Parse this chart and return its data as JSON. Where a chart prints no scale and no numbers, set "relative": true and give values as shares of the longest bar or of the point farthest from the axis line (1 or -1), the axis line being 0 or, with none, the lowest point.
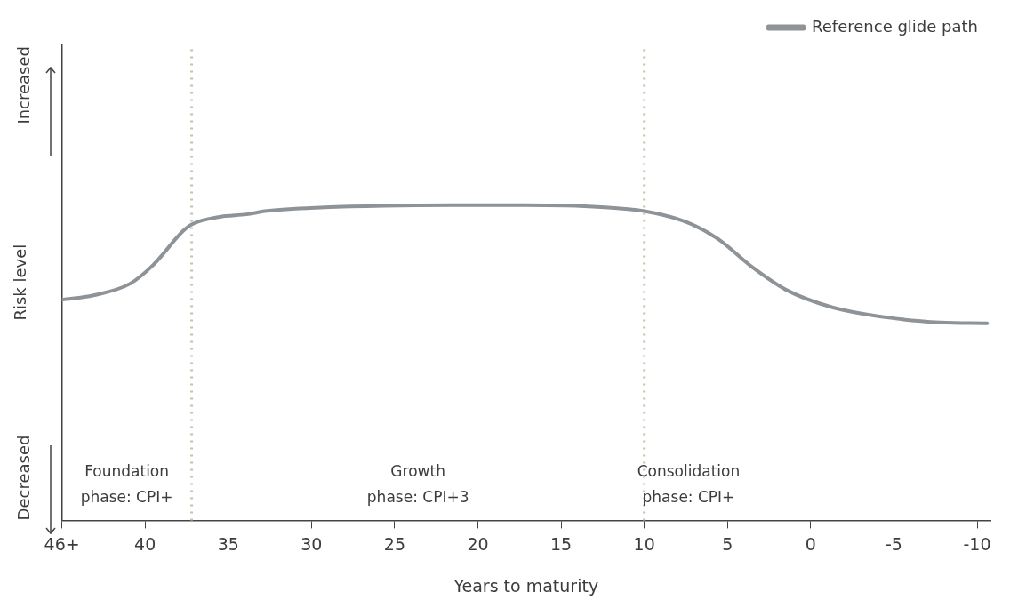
{
  "chart_data": {
    "type": "line",
    "relative": true,
    "xlabel": "Years to maturity",
    "ylabel": "Risk level",
    "xlim": [
      45,
      -10.8
    ],
    "xticks": [
      {
        "value": 45,
        "label": "46+"
      },
      40,
      35,
      30,
      25,
      20,
      15,
      10,
      5,
      0,
      -5,
      -10
    ],
    "series": [
      {
        "name": "Reference glide path",
        "color": "#8e9398",
        "x": [
          45.0,
          43.1,
          40.9,
          39.5,
          37.7,
          37.2,
          35.5,
          33.9,
          32.8,
          29.2,
          25.6,
          20.2,
          17.2,
          12.6,
          10.0,
          7.4,
          5.6,
          3.5,
          1.5,
          -1.3,
          -5.0,
          -7.8,
          -10.6
        ],
        "values": [
          0.7,
          0.714,
          0.751,
          0.811,
          0.919,
          0.939,
          0.963,
          0.971,
          0.981,
          0.993,
          0.998,
          1.0,
          1.0,
          0.994,
          0.981,
          0.945,
          0.894,
          0.803,
          0.732,
          0.676,
          0.641,
          0.628,
          0.625
        ]
      }
    ],
    "ref_lines": [
      {
        "axis": "x",
        "value": 37.2,
        "color": "#c9c0a8",
        "line_style": "dotted"
      },
      {
        "axis": "x",
        "value": 10,
        "color": "#c9c0a8",
        "line_style": "dotted"
      }
    ],
    "annotations": [
      "Increased",
      "Decreased",
      "Foundation\nphase: CPI+",
      "Growth\nphase: CPI+3",
      "Consolidation\nphase: CPI+"
    ],
    "legend": "top right",
    "grid": false,
    "marker": "none",
    "line_style": "solid"
  }
}
